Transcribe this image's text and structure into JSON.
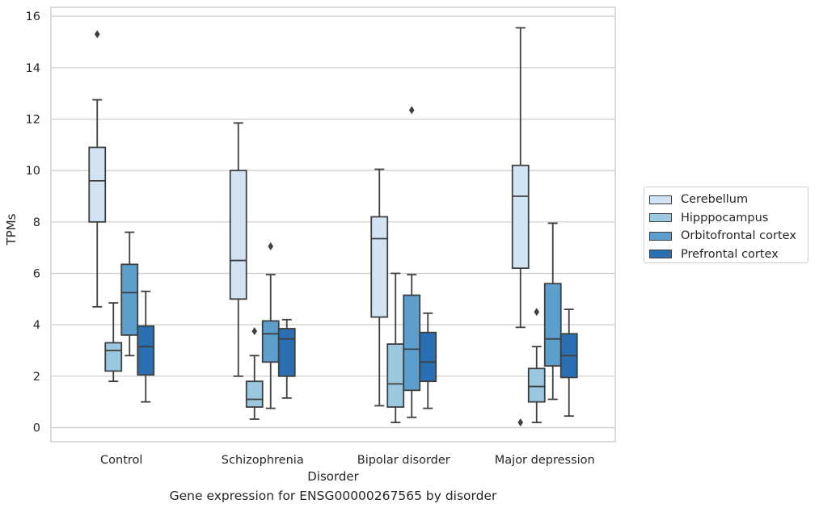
{
  "chart_data": {
    "type": "box",
    "title": "",
    "caption": "Gene expression for ENSG00000267565 by disorder",
    "xlabel": "Disorder",
    "ylabel": "TPMs",
    "ylim": [
      -0.55,
      16.35
    ],
    "yticks": [
      0,
      2,
      4,
      6,
      8,
      10,
      12,
      14,
      16
    ],
    "grid": "horizontal",
    "legend_position": "right",
    "categories": [
      "Control",
      "Schizophrenia",
      "Bipolar disorder",
      "Major depression"
    ],
    "series": [
      {
        "name": "Cerebellum",
        "color": "#d2e3f3",
        "boxes": [
          {
            "whislo": 4.7,
            "q1": 8.0,
            "med": 9.6,
            "q3": 10.9,
            "whishi": 12.75,
            "fliers": [
              15.3
            ]
          },
          {
            "whislo": 2.0,
            "q1": 5.0,
            "med": 6.5,
            "q3": 10.0,
            "whishi": 11.85,
            "fliers": []
          },
          {
            "whislo": 0.85,
            "q1": 4.3,
            "med": 7.35,
            "q3": 8.2,
            "whishi": 10.05,
            "fliers": []
          },
          {
            "whislo": 3.9,
            "q1": 6.2,
            "med": 9.0,
            "q3": 10.2,
            "whishi": 15.55,
            "fliers": [
              0.2
            ]
          }
        ]
      },
      {
        "name": "Hipppocampus",
        "color": "#9ac8e0",
        "boxes": [
          {
            "whislo": 1.8,
            "q1": 2.2,
            "med": 3.0,
            "q3": 3.3,
            "whishi": 4.85,
            "fliers": []
          },
          {
            "whislo": 0.33,
            "q1": 0.8,
            "med": 1.1,
            "q3": 1.8,
            "whishi": 2.8,
            "fliers": [
              3.75
            ]
          },
          {
            "whislo": 0.2,
            "q1": 0.8,
            "med": 1.7,
            "q3": 3.25,
            "whishi": 6.0,
            "fliers": []
          },
          {
            "whislo": 0.2,
            "q1": 1.0,
            "med": 1.6,
            "q3": 2.3,
            "whishi": 3.15,
            "fliers": [
              4.5
            ]
          }
        ]
      },
      {
        "name": "Orbitofrontal cortex",
        "color": "#5c9fcd",
        "boxes": [
          {
            "whislo": 2.8,
            "q1": 3.6,
            "med": 5.25,
            "q3": 6.35,
            "whishi": 7.6,
            "fliers": []
          },
          {
            "whislo": 0.75,
            "q1": 2.55,
            "med": 3.65,
            "q3": 4.15,
            "whishi": 5.95,
            "fliers": [
              7.05
            ]
          },
          {
            "whislo": 0.4,
            "q1": 1.45,
            "med": 3.05,
            "q3": 5.15,
            "whishi": 5.95,
            "fliers": [
              12.35
            ]
          },
          {
            "whislo": 1.1,
            "q1": 2.4,
            "med": 3.45,
            "q3": 5.6,
            "whishi": 7.95,
            "fliers": []
          }
        ]
      },
      {
        "name": "Prefrontal cortex",
        "color": "#2a6fb2",
        "boxes": [
          {
            "whislo": 1.0,
            "q1": 2.05,
            "med": 3.15,
            "q3": 3.95,
            "whishi": 5.3,
            "fliers": []
          },
          {
            "whislo": 1.15,
            "q1": 2.0,
            "med": 3.45,
            "q3": 3.85,
            "whishi": 4.2,
            "fliers": []
          },
          {
            "whislo": 0.75,
            "q1": 1.8,
            "med": 2.55,
            "q3": 3.7,
            "whishi": 4.45,
            "fliers": []
          },
          {
            "whislo": 0.45,
            "q1": 1.95,
            "med": 2.8,
            "q3": 3.65,
            "whishi": 4.6,
            "fliers": []
          }
        ]
      }
    ]
  }
}
